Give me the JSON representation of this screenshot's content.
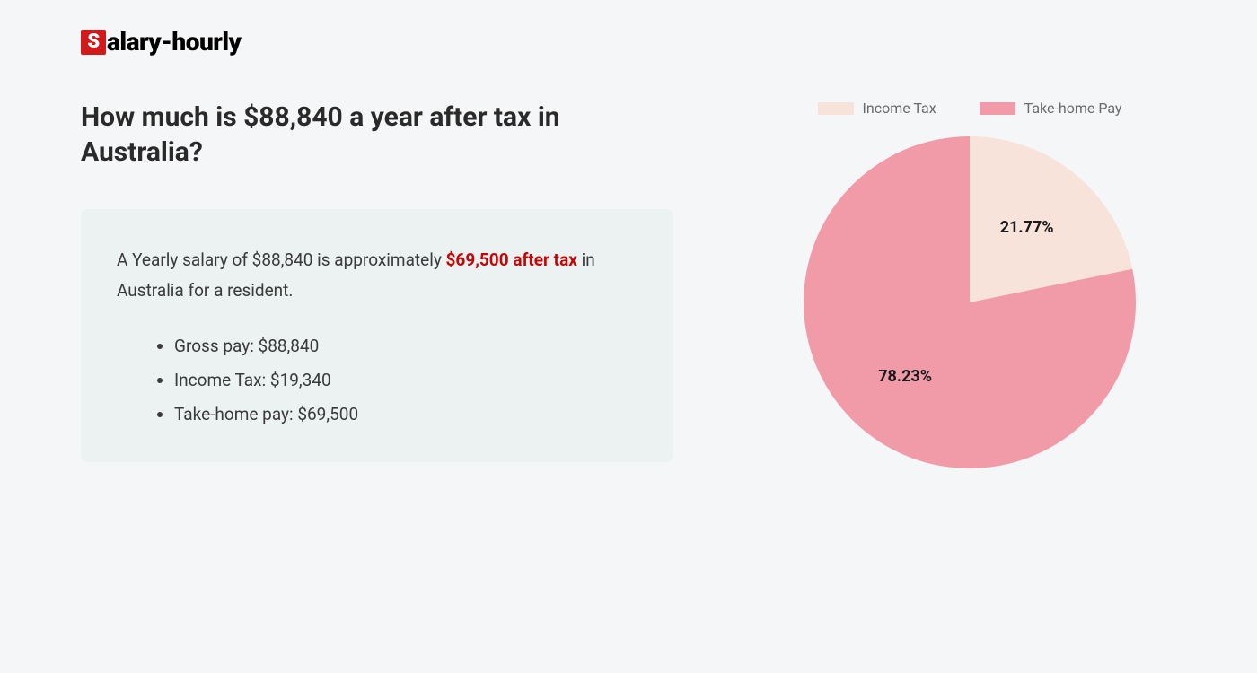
{
  "logo": {
    "badge_letter": "S",
    "rest": "alary-hourly"
  },
  "heading": "How much is $88,840 a year after tax in Australia?",
  "summary": {
    "pre": "A Yearly salary of $88,840 is approximately ",
    "highlight": "$69,500 after tax",
    "post": " in Australia for a resident."
  },
  "breakdown": [
    "Gross pay: $88,840",
    "Income Tax: $19,340",
    "Take-home pay: $69,500"
  ],
  "chart": {
    "type": "pie",
    "radius": 185,
    "background_color": "#f5f6f8",
    "legend_text_color": "#6a6a6a",
    "label_text_color": "#1a1a1a",
    "label_fontsize": 18,
    "slices": [
      {
        "name": "Income Tax",
        "value": 21.77,
        "label": "21.77%",
        "color": "#f7e3d9"
      },
      {
        "name": "Take-home Pay",
        "value": 78.23,
        "label": "78.23%",
        "color": "#f19aa8"
      }
    ],
    "start_angle_deg": -90
  }
}
